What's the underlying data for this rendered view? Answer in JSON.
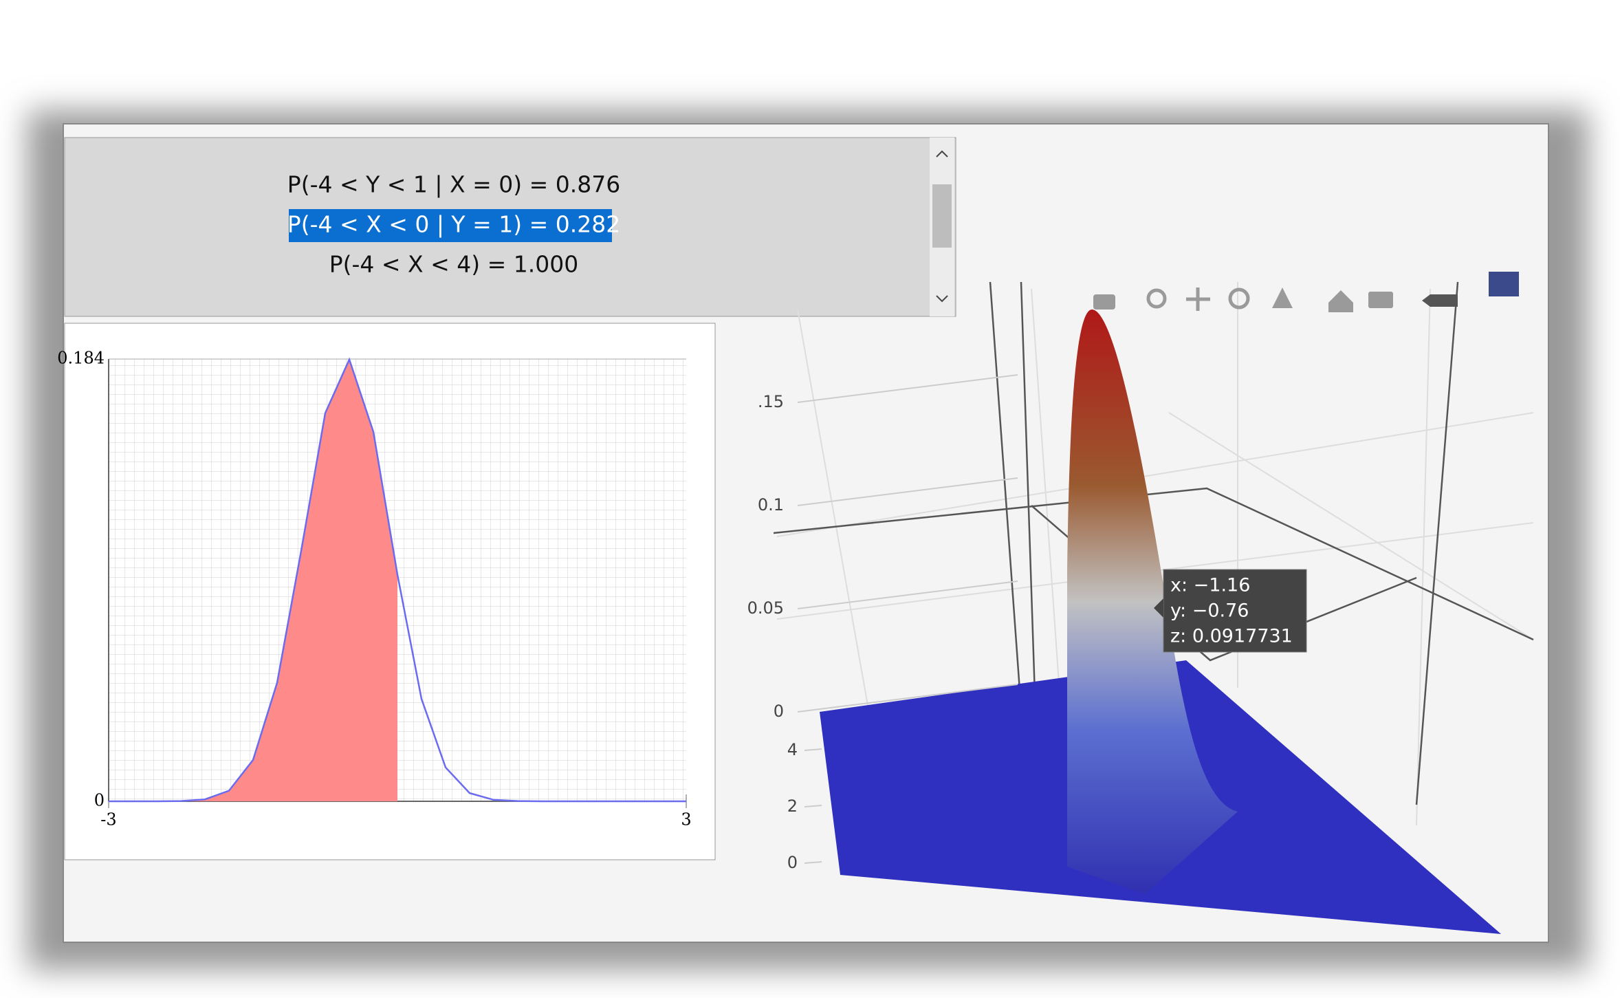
{
  "results_box": {
    "lines": [
      "P(-4 < Y < 1 | X = 0) = 0.876",
      "P(-4 < X < 0 | Y = 1) = 0.282",
      "P(-4 < X < 4) = 1.000"
    ],
    "selected_index": 1
  },
  "chart_data": [
    {
      "type": "line",
      "x": [
        -3,
        -2.75,
        -2.5,
        -2.25,
        -2,
        -1.75,
        -1.5,
        -1.25,
        -1,
        -0.75,
        -0.5,
        -0.25,
        0,
        0.25,
        0.5,
        0.75,
        1,
        1.25,
        1.5,
        1.75,
        2,
        2.25,
        2.5,
        2.75,
        3
      ],
      "series": [
        {
          "color": "#6b6bf0",
          "values": [
            0,
            0,
            0,
            0.0001,
            0.0008,
            0.0044,
            0.0172,
            0.0493,
            0.1042,
            0.1615,
            0.1838,
            0.1537,
            0.0943,
            0.0426,
            0.0141,
            0.0034,
            0.0006,
            0.0001,
            0,
            0,
            0,
            0,
            0,
            0,
            0
          ]
        }
      ],
      "shaded_range": [
        -3,
        0
      ],
      "shade_color": "#ff8a8a",
      "xlim": [
        -3,
        3
      ],
      "ylim": [
        0,
        0.184
      ],
      "xticks": [
        -3,
        3
      ],
      "yticks": [
        0,
        0.184
      ],
      "grid": true
    },
    {
      "type": "surface",
      "zlim": [
        0,
        0.15
      ],
      "zticks": [
        0,
        0.05,
        0.1,
        {
          "value": 0.15,
          "label": ".15"
        }
      ],
      "yticks": [
        0,
        2,
        4
      ],
      "tooltip": [
        "x: −1.16",
        "y: −0.76",
        "z: 0.0917731"
      ]
    }
  ]
}
